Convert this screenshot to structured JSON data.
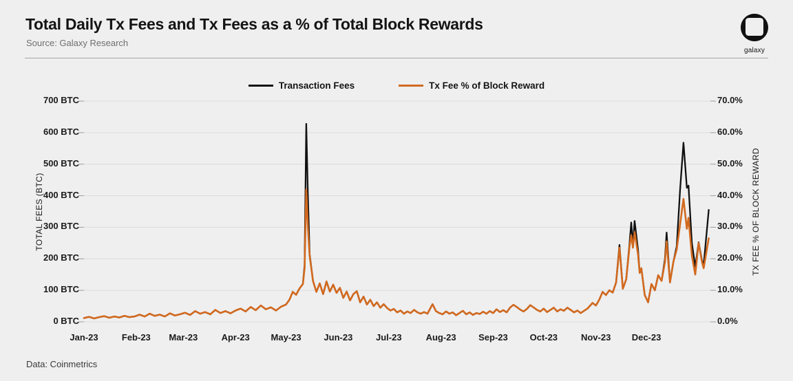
{
  "header": {
    "title": "Total Daily Tx Fees and Tx Fees as a % of Total Block Rewards",
    "subtitle": "Source: Galaxy Research"
  },
  "logo": {
    "label": "galaxy"
  },
  "footer": {
    "text": "Data: Coinmetrics"
  },
  "legend": [
    {
      "label": "Transaction Fees",
      "color": "#111111"
    },
    {
      "label": "Tx Fee % of Block Reward",
      "color": "#d2691e"
    }
  ],
  "chart_data": {
    "type": "line",
    "title": "Total Daily Tx Fees and Tx Fees as a % of Total Block Rewards",
    "left_axis": {
      "title": "TOTAL FEES (BTC)",
      "range": [
        0,
        700
      ],
      "tick_labels": [
        "700 BTC",
        "600 BTC",
        "500 BTC",
        "400 BTC",
        "300 BTC",
        "200 BTC",
        "100 BTC",
        "0 BTC"
      ]
    },
    "right_axis": {
      "title": "TX FEE % OF BLOCK REWARD",
      "range": [
        0,
        70
      ],
      "tick_labels": [
        "70.0%",
        "60.0%",
        "50.0%",
        "40.0%",
        "30.0%",
        "20.0%",
        "10.0%",
        "0.0%"
      ]
    },
    "x_axis": {
      "month_labels": [
        "Jan-23",
        "Feb-23",
        "Mar-23",
        "Apr-23",
        "May-23",
        "Jun-23",
        "Jul-23",
        "Aug-23",
        "Sep-23",
        "Oct-23",
        "Nov-23",
        "Dec-23"
      ],
      "month_start_days": [
        0,
        31,
        59,
        90,
        120,
        151,
        181,
        212,
        243,
        273,
        304,
        334
      ],
      "day_range": [
        0,
        372
      ]
    },
    "grid": "horizontal-only",
    "x_days": [
      0,
      3,
      6,
      9,
      12,
      15,
      18,
      21,
      24,
      27,
      30,
      33,
      36,
      39,
      42,
      45,
      48,
      51,
      54,
      57,
      60,
      63,
      66,
      69,
      72,
      75,
      78,
      81,
      84,
      87,
      90,
      93,
      96,
      99,
      102,
      105,
      108,
      111,
      114,
      117,
      120,
      122,
      124,
      126,
      128,
      130,
      131,
      132,
      133,
      134,
      136,
      138,
      140,
      142,
      144,
      146,
      148,
      150,
      152,
      154,
      156,
      158,
      160,
      162,
      164,
      166,
      168,
      170,
      172,
      174,
      176,
      178,
      180,
      182,
      184,
      186,
      188,
      190,
      192,
      194,
      196,
      198,
      200,
      202,
      204,
      207,
      209,
      211,
      213,
      215,
      217,
      219,
      221,
      223,
      225,
      227,
      229,
      231,
      233,
      235,
      237,
      239,
      241,
      243,
      245,
      247,
      249,
      251,
      253,
      255,
      257,
      259,
      261,
      263,
      265,
      267,
      269,
      271,
      273,
      275,
      277,
      279,
      281,
      283,
      285,
      287,
      289,
      291,
      293,
      295,
      297,
      299,
      302,
      304,
      306,
      308,
      310,
      312,
      314,
      316,
      318,
      320,
      322,
      324,
      325,
      326,
      327,
      329,
      330,
      331,
      333,
      335,
      337,
      339,
      341,
      343,
      345,
      346,
      348,
      350,
      352,
      354,
      356,
      358,
      359,
      361,
      363,
      365,
      367,
      368,
      371
    ],
    "series": [
      {
        "name": "Transaction Fees",
        "axis": "left",
        "unit": "BTC",
        "color": "#111111",
        "stroke_width": 2.3,
        "values": [
          12,
          16,
          11,
          15,
          18,
          13,
          17,
          14,
          19,
          15,
          17,
          23,
          17,
          26,
          19,
          23,
          17,
          27,
          20,
          24,
          29,
          22,
          34,
          26,
          31,
          24,
          38,
          28,
          34,
          27,
          36,
          42,
          33,
          47,
          37,
          52,
          40,
          46,
          36,
          48,
          55,
          70,
          95,
          86,
          106,
          120,
          180,
          628,
          400,
          215,
          130,
          95,
          122,
          88,
          128,
          96,
          118,
          92,
          108,
          76,
          96,
          68,
          88,
          97,
          62,
          80,
          55,
          70,
          50,
          62,
          45,
          56,
          44,
          36,
          41,
          30,
          36,
          26,
          33,
          28,
          38,
          30,
          26,
          31,
          26,
          56,
          34,
          28,
          24,
          33,
          26,
          30,
          21,
          28,
          35,
          24,
          30,
          22,
          28,
          25,
          32,
          26,
          34,
          28,
          40,
          31,
          37,
          30,
          45,
          54,
          47,
          39,
          33,
          41,
          53,
          46,
          38,
          33,
          42,
          31,
          38,
          45,
          33,
          40,
          35,
          45,
          38,
          30,
          36,
          28,
          35,
          42,
          60,
          52,
          70,
          95,
          85,
          100,
          93,
          125,
          244,
          105,
          135,
          250,
          315,
          246,
          320,
          230,
          155,
          170,
          85,
          62,
          120,
          100,
          148,
          130,
          200,
          283,
          125,
          190,
          240,
          420,
          568,
          425,
          432,
          250,
          175,
          252,
          195,
          180,
          355
        ]
      },
      {
        "name": "Tx Fee % of Block Reward",
        "axis": "right",
        "unit": "%",
        "color": "#d2691e",
        "stroke_width": 2.6,
        "values": [
          1.2,
          1.6,
          1.1,
          1.5,
          1.8,
          1.3,
          1.7,
          1.4,
          1.9,
          1.5,
          1.7,
          2.3,
          1.7,
          2.6,
          1.9,
          2.3,
          1.7,
          2.7,
          2.0,
          2.4,
          2.9,
          2.2,
          3.4,
          2.6,
          3.1,
          2.4,
          3.8,
          2.8,
          3.4,
          2.7,
          3.6,
          4.2,
          3.3,
          4.7,
          3.7,
          5.2,
          4.0,
          4.6,
          3.6,
          4.8,
          5.5,
          7.0,
          9.5,
          8.6,
          10.6,
          12.0,
          17.0,
          42.0,
          30.0,
          21.0,
          13.0,
          9.5,
          12.2,
          8.8,
          12.8,
          9.6,
          11.8,
          9.2,
          10.8,
          7.6,
          9.6,
          6.8,
          8.8,
          9.7,
          6.2,
          8.0,
          5.5,
          7.0,
          5.0,
          6.2,
          4.5,
          5.6,
          4.4,
          3.6,
          4.1,
          3.0,
          3.6,
          2.6,
          3.3,
          2.8,
          3.8,
          3.0,
          2.6,
          3.1,
          2.6,
          5.6,
          3.4,
          2.8,
          2.4,
          3.3,
          2.6,
          3.0,
          2.1,
          2.8,
          3.5,
          2.4,
          3.0,
          2.2,
          2.8,
          2.5,
          3.2,
          2.6,
          3.4,
          2.8,
          4.0,
          3.1,
          3.7,
          3.0,
          4.5,
          5.4,
          4.7,
          3.9,
          3.3,
          4.1,
          5.3,
          4.6,
          3.8,
          3.3,
          4.2,
          3.1,
          3.8,
          4.5,
          3.3,
          4.0,
          3.5,
          4.5,
          3.8,
          3.0,
          3.6,
          2.8,
          3.5,
          4.2,
          6.0,
          5.2,
          7.0,
          9.5,
          8.5,
          10.0,
          9.3,
          12.5,
          23.5,
          10.5,
          13.5,
          24.0,
          27.5,
          23.5,
          28.5,
          21.5,
          15.5,
          17.0,
          8.5,
          6.2,
          12.0,
          10.0,
          14.8,
          13.0,
          19.0,
          25.5,
          12.5,
          19.0,
          23.0,
          31.0,
          39.0,
          29.5,
          33.0,
          21.0,
          15.0,
          25.0,
          19.0,
          17.0,
          26.5
        ]
      }
    ],
    "colors": {
      "grid": "#dcdcdc",
      "tick": "#9b9b9b",
      "background": "#efefef"
    }
  }
}
